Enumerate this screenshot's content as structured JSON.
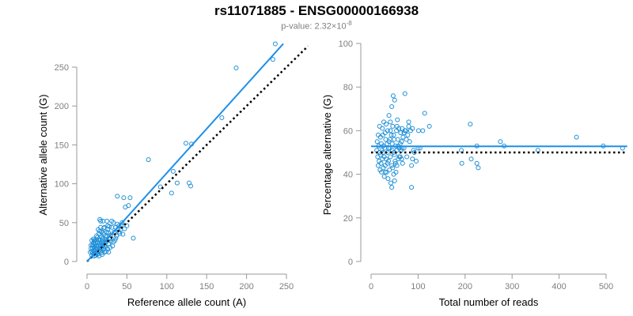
{
  "header": {
    "title": "rs11071885 - ENSG00000166938",
    "pvalue_label": "p-value: 2.32×10",
    "pvalue_exp": "-8"
  },
  "colors": {
    "points": "#1f8fd6",
    "fit": "#1f8fe8",
    "reference": "#000000",
    "axis": "#999999",
    "ticks": "#7f7f7f"
  },
  "chart_data": [
    {
      "type": "scatter",
      "xlabel": "Reference allele count (A)",
      "ylabel": "Alternative allele count (G)",
      "xlim": [
        0,
        260
      ],
      "ylim": [
        0,
        260
      ],
      "xticks": [
        0,
        50,
        100,
        150,
        200,
        250
      ],
      "yticks": [
        0,
        50,
        100,
        150,
        200,
        250
      ],
      "fit_line": {
        "x": [
          0,
          246
        ],
        "y": [
          0,
          280
        ]
      },
      "reference_line": {
        "x": [
          0,
          277
        ],
        "y": [
          0,
          277
        ]
      },
      "points": [
        [
          236,
          280
        ],
        [
          233,
          260
        ],
        [
          187,
          249
        ],
        [
          169,
          185
        ],
        [
          131,
          151
        ],
        [
          124,
          152
        ],
        [
          128,
          101
        ],
        [
          130,
          97
        ],
        [
          113,
          101
        ],
        [
          108,
          116
        ],
        [
          106,
          88
        ],
        [
          92,
          96
        ],
        [
          77,
          131
        ],
        [
          58,
          30
        ],
        [
          52,
          72
        ],
        [
          54,
          82
        ],
        [
          48,
          70
        ],
        [
          38,
          84
        ],
        [
          46,
          82
        ],
        [
          50,
          46
        ],
        [
          47,
          42
        ],
        [
          44,
          50
        ],
        [
          40,
          46
        ],
        [
          42,
          41
        ],
        [
          38,
          48
        ],
        [
          40,
          38
        ],
        [
          37,
          33
        ],
        [
          35,
          27
        ],
        [
          33,
          50
        ],
        [
          31,
          44
        ],
        [
          30,
          34
        ],
        [
          29,
          29
        ],
        [
          27,
          37
        ],
        [
          27,
          23
        ],
        [
          26,
          46
        ],
        [
          25,
          32
        ],
        [
          24,
          28
        ],
        [
          22,
          26
        ],
        [
          21,
          43
        ],
        [
          20,
          30
        ],
        [
          20,
          20
        ],
        [
          19,
          25
        ],
        [
          18,
          38
        ],
        [
          18,
          22
        ],
        [
          17,
          13
        ],
        [
          16,
          28
        ],
        [
          16,
          17
        ],
        [
          15,
          36
        ],
        [
          15,
          21
        ],
        [
          14,
          10
        ],
        [
          14,
          41
        ],
        [
          13,
          17
        ],
        [
          13,
          25
        ],
        [
          12,
          12
        ],
        [
          12,
          20
        ],
        [
          11,
          8
        ],
        [
          11,
          16
        ],
        [
          10,
          14
        ],
        [
          10,
          22
        ],
        [
          9,
          10
        ],
        [
          9,
          18
        ],
        [
          8,
          14
        ],
        [
          8,
          24
        ],
        [
          7,
          11
        ],
        [
          7,
          17
        ],
        [
          6,
          13
        ],
        [
          6,
          8
        ],
        [
          5,
          17
        ],
        [
          5,
          21
        ],
        [
          4,
          12
        ],
        [
          16,
          54
        ],
        [
          17,
          52
        ],
        [
          22,
          44
        ],
        [
          25,
          38
        ],
        [
          28,
          30
        ],
        [
          23,
          19
        ],
        [
          20,
          15
        ],
        [
          18,
          11
        ],
        [
          24,
          13
        ],
        [
          30,
          26
        ],
        [
          32,
          20
        ],
        [
          19,
          9
        ],
        [
          15,
          7
        ],
        [
          14,
          19
        ],
        [
          13,
          31
        ],
        [
          11,
          24
        ],
        [
          9,
          27
        ],
        [
          21,
          35
        ],
        [
          26,
          16
        ],
        [
          34,
          38
        ],
        [
          36,
          30
        ],
        [
          39,
          42
        ],
        [
          45,
          35
        ],
        [
          28,
          45
        ],
        [
          22,
          12
        ],
        [
          17,
          44
        ],
        [
          12,
          33
        ],
        [
          10,
          27
        ],
        [
          8,
          29
        ],
        [
          6,
          27
        ],
        [
          29,
          18
        ],
        [
          33,
          25
        ],
        [
          36,
          44
        ],
        [
          41,
          36
        ],
        [
          43,
          47
        ],
        [
          31,
          52
        ],
        [
          26,
          41
        ],
        [
          20,
          37
        ],
        [
          19,
          28
        ],
        [
          15,
          14
        ],
        [
          27,
          12
        ],
        [
          23,
          33
        ],
        [
          18,
          31
        ],
        [
          14,
          28
        ],
        [
          22,
          21
        ],
        [
          12,
          28
        ],
        [
          8,
          20
        ],
        [
          7,
          21
        ],
        [
          13,
          9
        ],
        [
          11,
          11
        ],
        [
          9,
          7
        ],
        [
          16,
          24
        ],
        [
          18,
          17
        ],
        [
          24,
          25
        ],
        [
          21,
          17
        ],
        [
          16,
          39
        ],
        [
          20,
          52
        ],
        [
          25,
          52
        ]
      ]
    },
    {
      "type": "scatter",
      "xlabel": "Total number of reads",
      "ylabel": "Percentage alternative (G)",
      "xlim": [
        0,
        540
      ],
      "ylim": [
        0,
        100
      ],
      "xticks": [
        0,
        100,
        200,
        300,
        400,
        500
      ],
      "yticks": [
        0,
        20,
        40,
        60,
        80,
        100
      ],
      "fit_line": {
        "x": [
          0,
          545
        ],
        "y": [
          52.8,
          52.8
        ]
      },
      "reference_line": {
        "x": [
          0,
          545
        ],
        "y": [
          50,
          50
        ]
      },
      "points": [
        [
          535,
          52
        ],
        [
          494,
          53
        ],
        [
          437,
          57
        ],
        [
          355,
          51
        ],
        [
          283,
          53
        ],
        [
          275,
          55
        ],
        [
          225,
          53
        ],
        [
          228,
          43
        ],
        [
          225,
          45
        ],
        [
          213,
          47
        ],
        [
          211,
          63
        ],
        [
          192,
          51
        ],
        [
          193,
          45
        ],
        [
          124,
          62
        ],
        [
          114,
          68
        ],
        [
          110,
          60
        ],
        [
          101,
          60
        ],
        [
          100,
          52
        ],
        [
          92,
          50
        ],
        [
          90,
          51
        ],
        [
          88,
          47
        ],
        [
          86,
          34
        ],
        [
          86,
          44
        ],
        [
          82,
          55
        ],
        [
          80,
          64
        ],
        [
          78,
          58
        ],
        [
          76,
          48
        ],
        [
          74,
          60
        ],
        [
          72,
          77
        ],
        [
          70,
          52
        ],
        [
          68,
          57
        ],
        [
          67,
          45
        ],
        [
          66,
          61
        ],
        [
          65,
          55
        ],
        [
          64,
          51
        ],
        [
          63,
          59
        ],
        [
          62,
          48
        ],
        [
          60,
          52
        ],
        [
          59,
          61
        ],
        [
          58,
          47
        ],
        [
          57,
          56
        ],
        [
          56,
          65
        ],
        [
          55,
          44
        ],
        [
          54,
          60
        ],
        [
          53,
          41
        ],
        [
          52,
          53
        ],
        [
          51,
          46
        ],
        [
          50,
          74
        ],
        [
          49,
          56
        ],
        [
          48,
          50
        ],
        [
          48,
          40
        ],
        [
          47,
          76
        ],
        [
          46,
          62
        ],
        [
          45,
          54
        ],
        [
          44,
          44
        ],
        [
          44,
          71
        ],
        [
          43,
          58
        ],
        [
          42,
          36
        ],
        [
          41,
          48
        ],
        [
          41,
          64
        ],
        [
          40,
          52
        ],
        [
          39,
          42
        ],
        [
          38,
          55
        ],
        [
          38,
          67
        ],
        [
          37,
          46
        ],
        [
          36,
          38
        ],
        [
          35,
          60
        ],
        [
          35,
          50
        ],
        [
          34,
          54
        ],
        [
          33,
          41
        ],
        [
          32,
          63
        ],
        [
          32,
          47
        ],
        [
          31,
          56
        ],
        [
          30,
          44
        ],
        [
          30,
          59
        ],
        [
          29,
          52
        ],
        [
          28,
          39
        ],
        [
          28,
          48
        ],
        [
          27,
          64
        ],
        [
          26,
          53
        ],
        [
          26,
          43
        ],
        [
          25,
          58
        ],
        [
          24,
          47
        ],
        [
          24,
          61
        ],
        [
          23,
          51
        ],
        [
          22,
          41
        ],
        [
          22,
          54
        ],
        [
          21,
          45
        ],
        [
          20,
          57
        ],
        [
          20,
          49
        ],
        [
          19,
          42
        ],
        [
          18,
          50
        ],
        [
          18,
          62
        ],
        [
          17,
          46
        ],
        [
          16,
          53
        ],
        [
          15,
          44
        ],
        [
          15,
          58
        ],
        [
          14,
          48
        ],
        [
          13,
          55
        ],
        [
          12,
          51
        ],
        [
          55,
          62
        ],
        [
          60,
          48
        ],
        [
          65,
          47
        ],
        [
          70,
          59
        ],
        [
          75,
          56
        ],
        [
          80,
          62
        ],
        [
          84,
          60
        ],
        [
          88,
          61
        ],
        [
          96,
          46
        ],
        [
          104,
          52
        ],
        [
          45,
          51
        ],
        [
          50,
          49
        ],
        [
          55,
          51
        ],
        [
          40,
          56
        ],
        [
          35,
          45
        ],
        [
          30,
          41
        ],
        [
          25,
          50
        ],
        [
          50,
          37
        ],
        [
          46,
          43
        ],
        [
          44,
          34
        ],
        [
          52,
          45
        ],
        [
          58,
          53
        ],
        [
          62,
          54
        ],
        [
          66,
          52
        ],
        [
          72,
          60
        ],
        [
          48,
          58
        ],
        [
          41,
          60
        ],
        [
          37,
          52
        ]
      ]
    }
  ]
}
